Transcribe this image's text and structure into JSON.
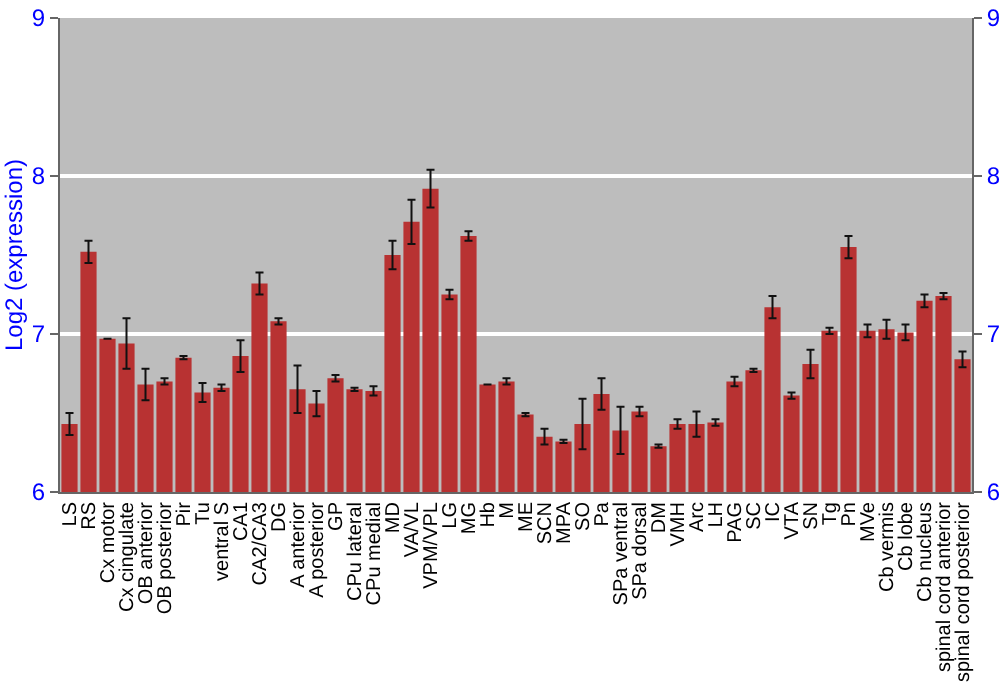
{
  "chart_data": {
    "type": "bar",
    "ylabel": "Log2 (expression)",
    "categories": [
      "LS",
      "RS",
      "Cx motor",
      "Cx cingulate",
      "OB anterior",
      "OB posterior",
      "Pir",
      "Tu",
      "ventral S",
      "CA1",
      "CA2/CA3",
      "DG",
      "A anterior",
      "A posterior",
      "GP",
      "CPu lateral",
      "CPu medial",
      "MD",
      "VA/VL",
      "VPM/VPL",
      "LG",
      "MG",
      "Hb",
      "M",
      "ME",
      "SCN",
      "MPA",
      "SO",
      "Pa",
      "SPa ventral",
      "SPa dorsal",
      "DM",
      "VMH",
      "Arc",
      "LH",
      "PAG",
      "SC",
      "IC",
      "VTA",
      "SN",
      "Tg",
      "Pn",
      "MVe",
      "Cb vermis",
      "Cb lobe",
      "Cb nucleus",
      "spinal cord anterior",
      "spinal cord posterior"
    ],
    "values": [
      6.43,
      7.52,
      6.97,
      6.94,
      6.68,
      6.7,
      6.85,
      6.63,
      6.66,
      6.86,
      7.32,
      7.08,
      6.65,
      6.56,
      6.72,
      6.65,
      6.64,
      7.5,
      7.71,
      7.92,
      7.25,
      7.62,
      6.68,
      6.7,
      6.49,
      6.35,
      6.32,
      6.43,
      6.62,
      6.39,
      6.51,
      6.29,
      6.43,
      6.43,
      6.44,
      6.7,
      6.77,
      7.17,
      6.61,
      6.81,
      7.02,
      7.55,
      7.02,
      7.03,
      7.01,
      7.21,
      7.24,
      6.84
    ],
    "errors": [
      0.07,
      0.07,
      null,
      0.16,
      0.1,
      0.02,
      0.01,
      0.06,
      0.02,
      0.1,
      0.07,
      0.02,
      0.15,
      0.08,
      0.02,
      0.01,
      0.03,
      0.09,
      0.14,
      0.12,
      0.03,
      0.03,
      null,
      0.02,
      0.01,
      0.05,
      0.01,
      0.16,
      0.1,
      0.15,
      0.03,
      0.01,
      0.03,
      0.08,
      0.02,
      0.03,
      0.01,
      0.07,
      0.02,
      0.09,
      0.02,
      0.07,
      0.04,
      0.06,
      0.05,
      0.04,
      0.02,
      0.05
    ],
    "color": "#b83232",
    "ylim": [
      6,
      9
    ],
    "yticks": [
      6,
      7,
      8,
      9
    ],
    "y2lim": [
      6,
      9
    ],
    "y2ticks": [
      6,
      7,
      8,
      9
    ],
    "grid": "y"
  }
}
